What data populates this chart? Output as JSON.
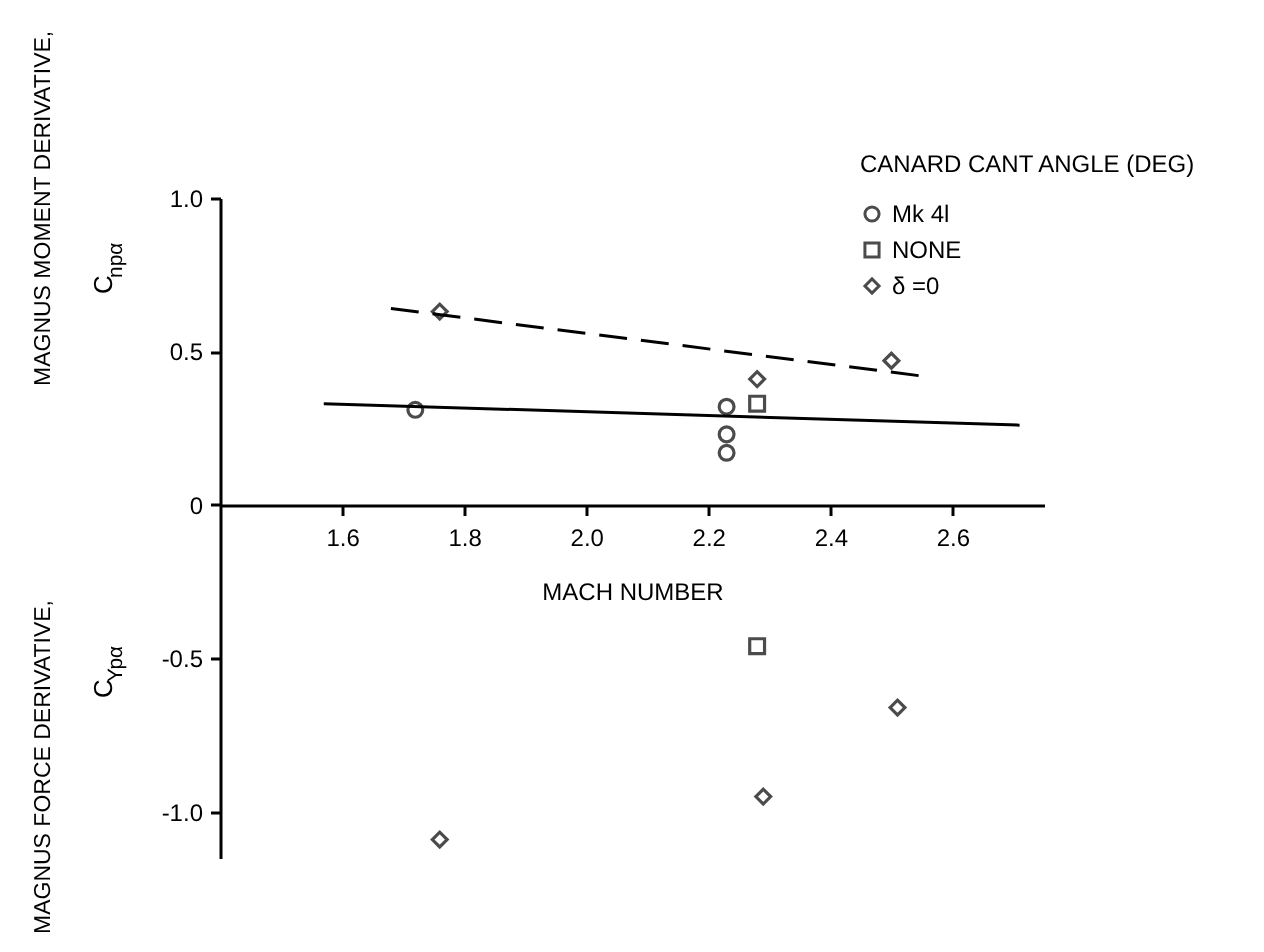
{
  "chart_data": {
    "type": "scatter",
    "xlabel": "MACH NUMBER",
    "ylabel": "MAGNUS MOMENT DERIVATIVE,",
    "annotations": [
      "C$_{npα}$",
      "MAGNUS FORCE DERIVATIVE,",
      "C$_{Ypα}$"
    ],
    "legend_title": "CANARD CANT ANGLE (DEG)",
    "xlim": [
      1.4,
      2.75
    ],
    "xticks": [
      1.6,
      1.8,
      {
        "value": 2,
        "label": "2.0"
      },
      2.2,
      2.4,
      2.6
    ],
    "ylim": [
      -1.15,
      1.0
    ],
    "yticks": [
      {
        "value": 1,
        "label": "1.0"
      },
      0.5,
      0,
      -0.5,
      {
        "value": -1,
        "label": "-1.0"
      }
    ],
    "grid": false,
    "legend": "top right",
    "series": [
      {
        "name": "Mk 4l",
        "marker": "circle",
        "color": "#000000",
        "x": [
          1.72,
          2.23,
          2.23,
          2.23
        ],
        "values": [
          0.31,
          0.32,
          0.23,
          0.17
        ]
      },
      {
        "name": "NONE",
        "marker": "square",
        "color": "#000000",
        "x": [
          2.28,
          2.28
        ],
        "values": [
          0.33,
          -0.46
        ]
      },
      {
        "name": "δ =0",
        "marker": "diamond",
        "color": "#000000",
        "x": [
          1.76,
          2.28,
          2.5,
          1.76,
          2.29,
          2.51
        ],
        "values": [
          0.63,
          0.41,
          0.47,
          -1.09,
          -0.95,
          -0.66
        ]
      },
      {
        "type": "line",
        "line_style": "solid",
        "color": "#000000",
        "x": [
          1.57,
          2.71
        ],
        "values": [
          0.33,
          0.26
        ]
      },
      {
        "type": "line",
        "line_style": "dashed",
        "color": "#000000",
        "x": [
          1.68,
          2.55
        ],
        "values": [
          0.64,
          0.42
        ]
      }
    ]
  }
}
